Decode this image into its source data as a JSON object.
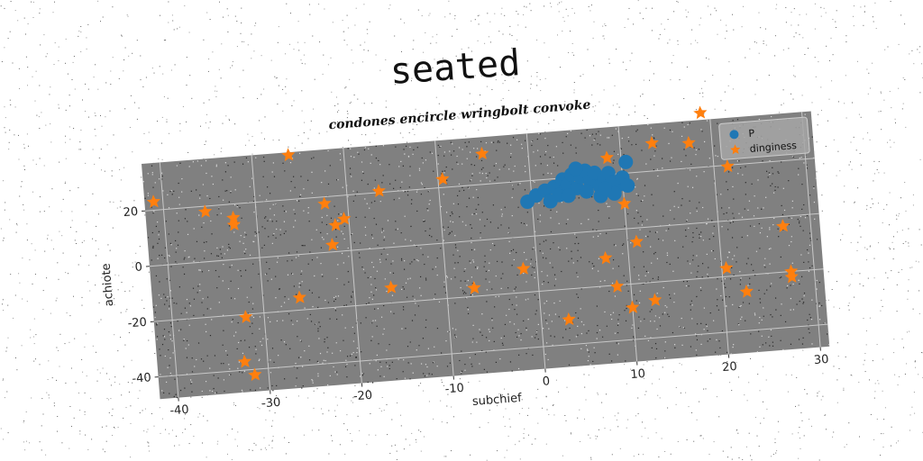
{
  "chart_data": {
    "type": "scatter",
    "title": "seated",
    "subtitle": "condones encircle wringbolt convoke",
    "xlabel": "subchief",
    "ylabel": "achiote",
    "xlim": [
      -42,
      31
    ],
    "ylim": [
      -48,
      37
    ],
    "xticks": [
      -40,
      -30,
      -20,
      -10,
      0,
      10,
      20,
      30
    ],
    "yticks": [
      -40,
      -20,
      0,
      20
    ],
    "grid": true,
    "legend_position": "top-right",
    "background_color": "#808080",
    "series": [
      {
        "name": "P",
        "marker": "circle",
        "color": "#1f77b4",
        "points": [
          [
            -0.5,
            12.5
          ],
          [
            0.5,
            14.5
          ],
          [
            1.5,
            16
          ],
          [
            2.5,
            17
          ],
          [
            3,
            14
          ],
          [
            3.5,
            19.5
          ],
          [
            4,
            17.5
          ],
          [
            4.5,
            21
          ],
          [
            5,
            16
          ],
          [
            5.5,
            20
          ],
          [
            6,
            22
          ],
          [
            6.5,
            18
          ],
          [
            7,
            21
          ],
          [
            7.5,
            16
          ],
          [
            8,
            19
          ],
          [
            8.5,
            20.5
          ],
          [
            9,
            17
          ],
          [
            9.5,
            16
          ],
          [
            10,
            18.5
          ],
          [
            10.5,
            24
          ],
          [
            2,
            12
          ],
          [
            4,
            13.5
          ],
          [
            6,
            14.5
          ],
          [
            7.5,
            12.5
          ],
          [
            9,
            13
          ],
          [
            10.5,
            15.5
          ],
          [
            8,
            15
          ],
          [
            5,
            23
          ]
        ]
      },
      {
        "name": "dinginess",
        "marker": "star",
        "color": "#ff7f0e",
        "points": [
          [
            -41,
            23
          ],
          [
            -35.5,
            18
          ],
          [
            -32.5,
            15
          ],
          [
            -32.5,
            12.5
          ],
          [
            -26,
            36
          ],
          [
            -22.5,
            17.5
          ],
          [
            -21.5,
            9.5
          ],
          [
            -20.5,
            11.5
          ],
          [
            -22,
            2.5
          ],
          [
            -16.5,
            20.5
          ],
          [
            -9.5,
            23
          ],
          [
            -5,
            31
          ],
          [
            -32,
            -21
          ],
          [
            -26,
            -15.5
          ],
          [
            -32.5,
            -37
          ],
          [
            -31.5,
            -42
          ],
          [
            -16,
            -14.5
          ],
          [
            -7,
            -17
          ],
          [
            -1.5,
            -11.5
          ],
          [
            3,
            -31
          ],
          [
            7.5,
            -10
          ],
          [
            8.5,
            -20.5
          ],
          [
            10,
            -28.5
          ],
          [
            11,
            -5
          ],
          [
            10,
            9
          ],
          [
            8.5,
            26
          ],
          [
            13.5,
            30
          ],
          [
            12.5,
            -26.5
          ],
          [
            17.5,
            29
          ],
          [
            19,
            39.5
          ],
          [
            21.5,
            19.5
          ],
          [
            20.5,
            -17
          ],
          [
            22.5,
            -26
          ],
          [
            27,
            -3.5
          ],
          [
            27.5,
            -20
          ],
          [
            27.5,
            -22
          ]
        ]
      }
    ]
  }
}
